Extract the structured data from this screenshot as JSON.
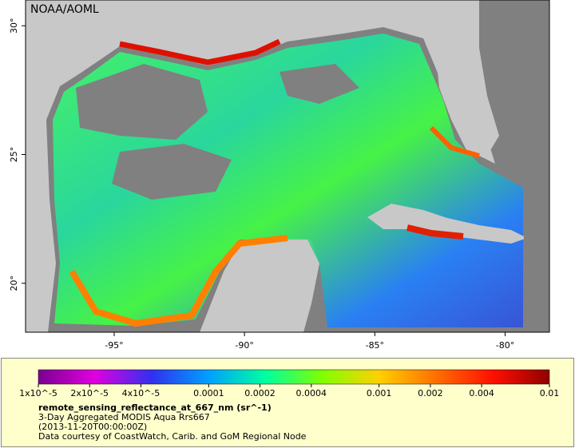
{
  "map": {
    "label": "NOAA/AOML",
    "lon_range": [
      -98.4,
      -78.3
    ],
    "lat_range": [
      18.1,
      31
    ],
    "lon_ticks": [
      {
        "value": -95,
        "label": "-95°"
      },
      {
        "value": -90,
        "label": "-90°"
      },
      {
        "value": -85,
        "label": "-85°"
      },
      {
        "value": -80,
        "label": "-80°"
      }
    ],
    "lat_ticks": [
      {
        "value": 20,
        "label": "20°"
      },
      {
        "value": 25,
        "label": "25°"
      },
      {
        "value": 30,
        "label": "30°"
      }
    ],
    "colorbar": {
      "log_scale": true,
      "range": [
        1e-05,
        0.01
      ],
      "colors": [
        "#7a0090",
        "#e000e0",
        "#3030f0",
        "#00a0ff",
        "#00ffa0",
        "#80ff00",
        "#ffd000",
        "#ff7000",
        "#ff1000",
        "#900000"
      ],
      "ticks": [
        {
          "value": 1e-05,
          "label": "1x10^-5"
        },
        {
          "value": 2e-05,
          "label": "2x10^-5"
        },
        {
          "value": 4e-05,
          "label": "4x10^-5"
        },
        {
          "value": 0.0001,
          "label": "0.0001"
        },
        {
          "value": 0.0002,
          "label": "0.0002"
        },
        {
          "value": 0.0004,
          "label": "0.0004"
        },
        {
          "value": 0.001,
          "label": "0.001"
        },
        {
          "value": 0.002,
          "label": "0.002"
        },
        {
          "value": 0.004,
          "label": "0.004"
        },
        {
          "value": 0.01,
          "label": "0.01"
        }
      ]
    },
    "legend": {
      "variable": "remote_sensing_reflectance_at_667_nm (sr^-1)",
      "description": "3-Day Aggregated MODIS Aqua Rrs667",
      "time": "(2013-11-20T00:00:00Z)",
      "credit": "Data courtesy of CoastWatch, Carib. and GoM Regional Node"
    }
  }
}
